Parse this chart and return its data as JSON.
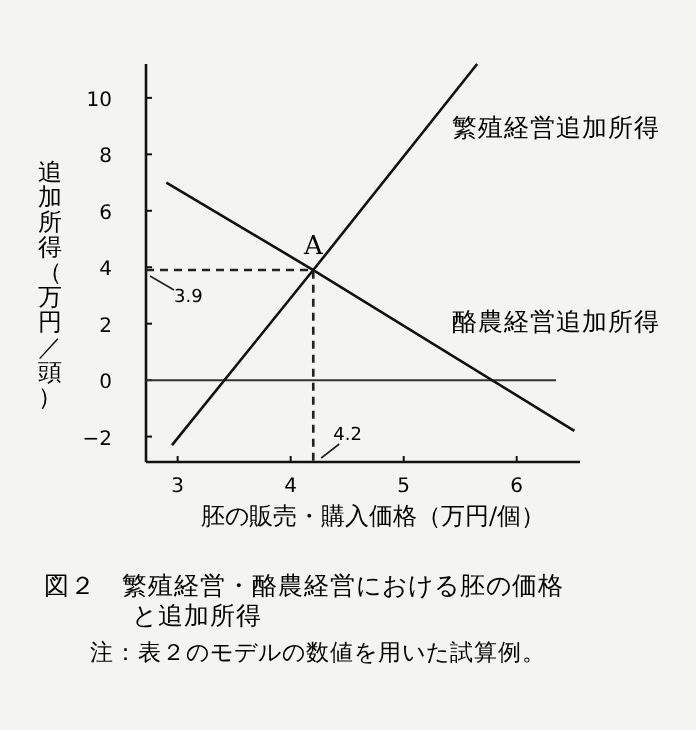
{
  "chart_data": {
    "type": "line",
    "title": "図２　繁殖経営・酪農経営における胚の価格と追加所得",
    "xlabel": "胚の販売・購入価格（万円/個）",
    "ylabel": "追加所得（万円／頭）",
    "annotations": [
      "3.9",
      "A",
      "4.2",
      "注：表２のモデルの数値を用いた試算例。"
    ],
    "series": [
      {
        "name": "繁殖経営追加所得",
        "color": "#111111",
        "x": [
          2.95,
          4.2,
          5.65
        ],
        "values": [
          -2.3,
          3.9,
          11.2
        ]
      },
      {
        "name": "酪農経営追加所得",
        "color": "#111111",
        "x": [
          2.9,
          4.2,
          6.51
        ],
        "values": [
          7,
          3.9,
          -1.8
        ]
      },
      {
        "color": "#222222",
        "line_style": "dashed",
        "x": [
          2.72,
          4.2,
          4.2
        ],
        "values": [
          3.9,
          3.9,
          -2.9
        ]
      }
    ],
    "ref_lines": [
      {
        "axis": "y",
        "value": 0,
        "color": "#333333"
      }
    ],
    "xlim": [
      2.72,
      6.56
    ],
    "ylim": [
      -2.9,
      11.2
    ],
    "xticks": [
      3,
      4,
      5,
      6
    ],
    "yticks": [
      {
        "value": -2,
        "label": "−2"
      },
      0,
      2,
      4,
      6,
      8,
      10
    ],
    "grid": false,
    "legend": false,
    "marker": "none"
  }
}
